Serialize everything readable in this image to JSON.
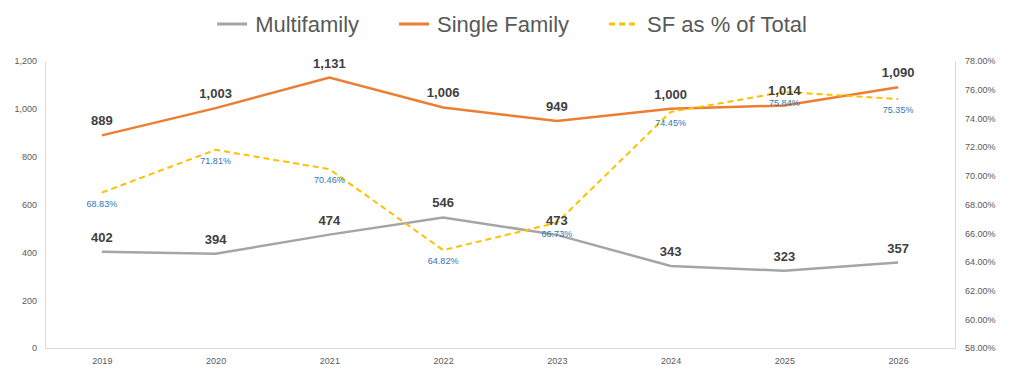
{
  "chart_data": {
    "type": "line",
    "categories": [
      "2019",
      "2020",
      "2021",
      "2022",
      "2023",
      "2024",
      "2025",
      "2026"
    ],
    "series": [
      {
        "name": "Multifamily",
        "color": "#a5a5a5",
        "line_style": "solid",
        "values": [
          402,
          394,
          474,
          546,
          473,
          343,
          323,
          357
        ]
      },
      {
        "name": "Single Family",
        "color": "#ed7d31",
        "line_style": "solid",
        "values": [
          889,
          1003,
          1131,
          1006,
          949,
          1000,
          1014,
          1090
        ],
        "value_labels": [
          "889",
          "1,003",
          "1,131",
          "1,006",
          "949",
          "1,000",
          "1,014",
          "1,090"
        ]
      },
      {
        "name": "SF as % of Total",
        "color": "#ffc000",
        "line_style": "dashed",
        "axis": "y2",
        "values": [
          68.83,
          71.81,
          70.46,
          64.82,
          66.73,
          74.45,
          75.84,
          75.35
        ],
        "value_labels": [
          "68.83%",
          "71.81%",
          "70.46%",
          "64.82%",
          "66.73%",
          "74.45%",
          "75.84%",
          "75.35%"
        ]
      }
    ],
    "ylim": [
      0,
      1200
    ],
    "yticks": [
      0,
      200,
      400,
      600,
      800,
      {
        "value": 1000,
        "label": "1,000"
      },
      {
        "value": 1200,
        "label": "1,200"
      }
    ],
    "y2lim": [
      58,
      78
    ],
    "y2ticks": [
      {
        "value": 58,
        "label": "58.00%"
      },
      {
        "value": 60,
        "label": "60.00%"
      },
      {
        "value": 62,
        "label": "62.00%"
      },
      {
        "value": 64,
        "label": "64.00%"
      },
      {
        "value": 66,
        "label": "66.00%"
      },
      {
        "value": 68,
        "label": "68.00%"
      },
      {
        "value": 70,
        "label": "70.00%"
      },
      {
        "value": 72,
        "label": "72.00%"
      },
      {
        "value": 74,
        "label": "74.00%"
      },
      {
        "value": 76,
        "label": "76.00%"
      },
      {
        "value": 78,
        "label": "78.00%"
      }
    ],
    "legend": "top",
    "data_labels": true,
    "grid": false
  }
}
